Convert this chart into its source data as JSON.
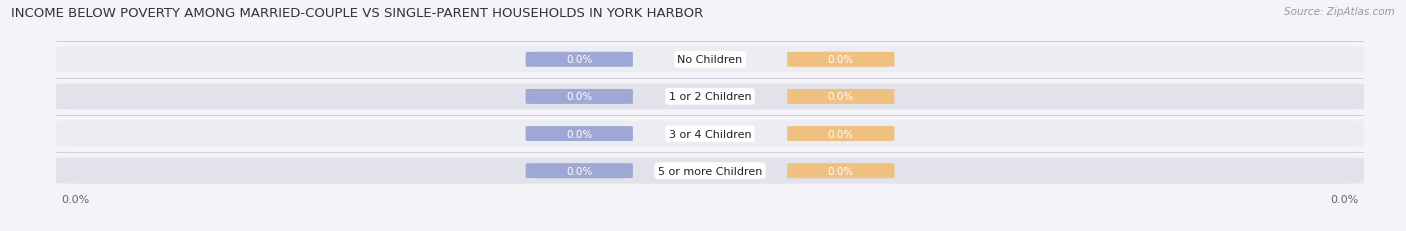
{
  "title": "INCOME BELOW POVERTY AMONG MARRIED-COUPLE VS SINGLE-PARENT HOUSEHOLDS IN YORK HARBOR",
  "source_text": "Source: ZipAtlas.com",
  "categories": [
    "No Children",
    "1 or 2 Children",
    "3 or 4 Children",
    "5 or more Children"
  ],
  "married_values": [
    "0.0%",
    "0.0%",
    "0.0%",
    "0.0%"
  ],
  "single_values": [
    "0.0%",
    "0.0%",
    "0.0%",
    "0.0%"
  ],
  "married_color": "#9fa8d5",
  "single_color": "#f0c080",
  "row_bg_light": "#ececf3",
  "row_bg_dark": "#e2e2eb",
  "row_pill_color": "#e8e8f0",
  "title_fontsize": 9.5,
  "source_fontsize": 7.5,
  "value_fontsize": 7.5,
  "category_fontsize": 8,
  "legend_fontsize": 8.5,
  "axis_tick_left": "0.0%",
  "axis_tick_right": "0.0%",
  "background_color": "#f4f4f8"
}
